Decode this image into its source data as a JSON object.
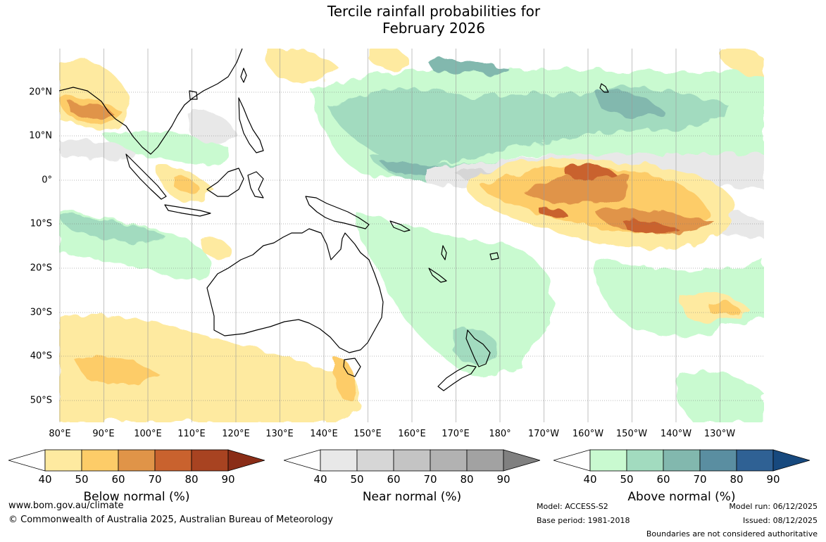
{
  "title_line1": "Tercile rainfall probabilities for",
  "title_line2": "February 2026",
  "map": {
    "lat_labels": [
      "20°N",
      "10°N",
      "0°",
      "10°S",
      "20°S",
      "30°S",
      "40°S",
      "50°S"
    ],
    "lon_labels": [
      "80°E",
      "90°E",
      "100°E",
      "110°E",
      "120°E",
      "130°E",
      "140°E",
      "150°E",
      "160°E",
      "170°E",
      "180°",
      "170°W",
      "160°W",
      "150°W",
      "140°W",
      "130°W"
    ]
  },
  "colorbars": [
    {
      "label": "Below normal (%)",
      "ticks": [
        "40",
        "50",
        "60",
        "70",
        "80",
        "90"
      ],
      "colors": [
        "#ffffff",
        "#feeaa0",
        "#fdcc68",
        "#e09448",
        "#c9622e",
        "#a84321",
        "#8a2d17"
      ]
    },
    {
      "label": "Near normal (%)",
      "ticks": [
        "40",
        "50",
        "60",
        "70",
        "80",
        "90"
      ],
      "colors": [
        "#ffffff",
        "#e8e8e8",
        "#d6d6d6",
        "#c4c4c4",
        "#b2b2b2",
        "#a2a2a2",
        "#808080"
      ]
    },
    {
      "label": "Above normal (%)",
      "ticks": [
        "40",
        "50",
        "60",
        "70",
        "80",
        "90"
      ],
      "colors": [
        "#ffffff",
        "#c9fad0",
        "#a2dbbf",
        "#82b8ae",
        "#5a8ea1",
        "#2f6194",
        "#17497e"
      ]
    }
  ],
  "footer": {
    "website": "www.bom.gov.au/climate",
    "copyright": "© Commonwealth of Australia 2025, Australian Bureau of Meteorology",
    "model": "Model: ACCESS-S2",
    "base_period": "Base period: 1981-2018",
    "model_run": "Model run: 06/12/2025",
    "issued": "Issued: 08/12/2025",
    "disclaimer": "Boundaries are not considered authoritative"
  }
}
